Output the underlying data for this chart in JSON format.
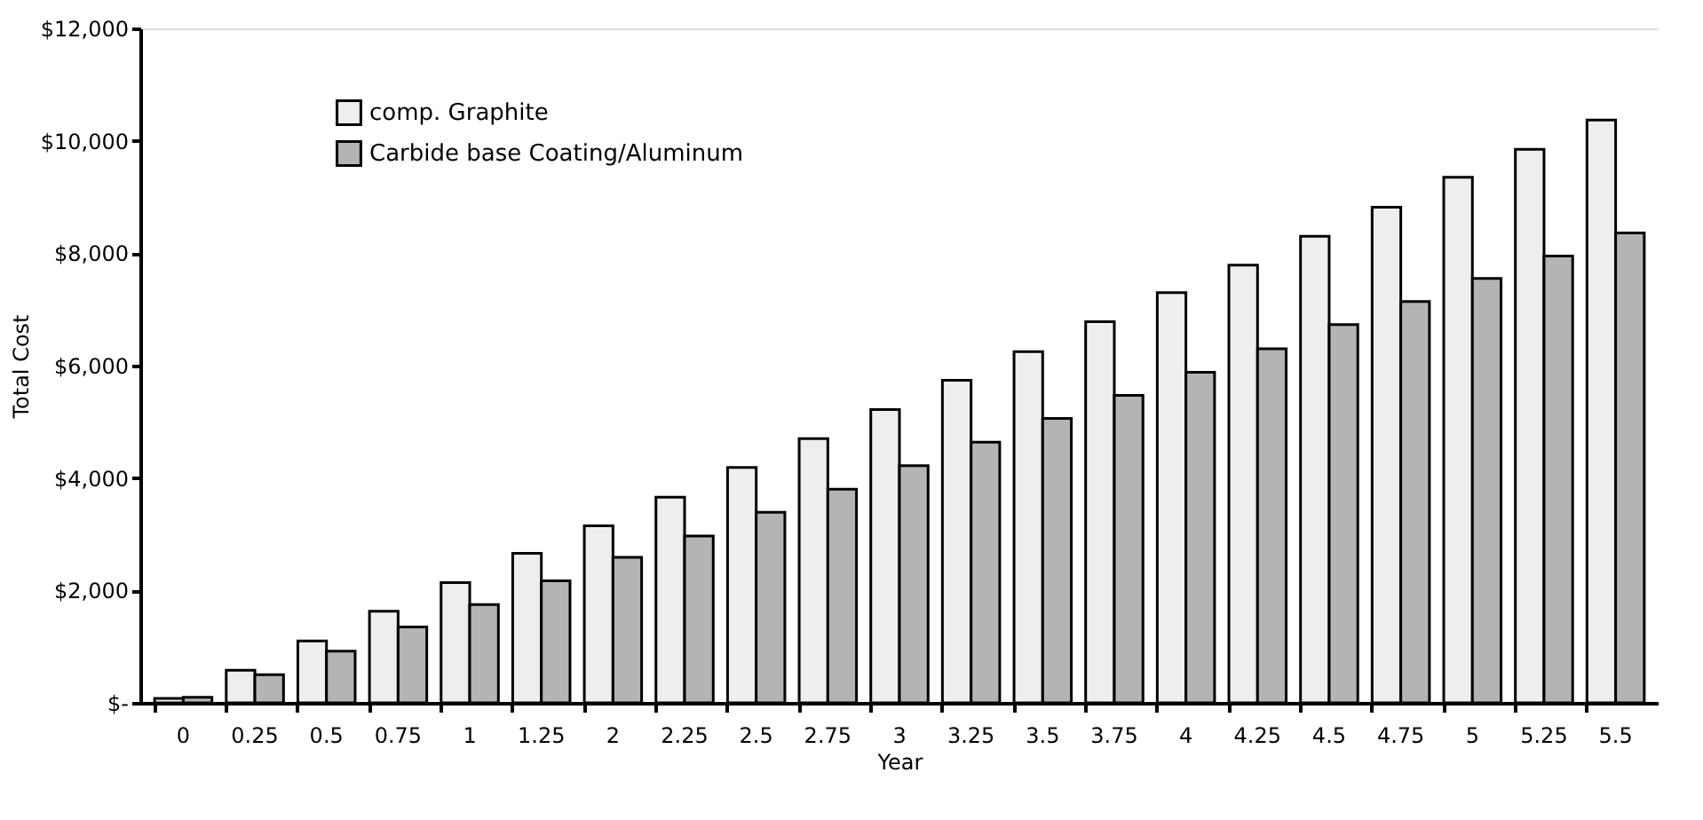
{
  "chart_data": {
    "type": "bar",
    "xlabel": "Year",
    "ylabel": "Total Cost",
    "categories": [
      "0",
      "0.25",
      "0.5",
      "0.75",
      "1",
      "1.25",
      "2",
      "2.25",
      "2.5",
      "2.75",
      "3",
      "3.25",
      "3.5",
      "3.75",
      "4",
      "4.25",
      "4.5",
      "4.75",
      "5",
      "5.25",
      "5.5"
    ],
    "series": [
      {
        "name": "comp. Graphite",
        "color": "#eeeeee",
        "values": [
          80,
          580,
          1100,
          1630,
          2140,
          2660,
          3150,
          3660,
          4190,
          4700,
          5220,
          5740,
          6250,
          6780,
          7300,
          7790,
          8300,
          8820,
          9350,
          9850,
          10370
        ]
      },
      {
        "name": "Carbide base Coating/Aluminum",
        "color": "#b4b4b4",
        "values": [
          100,
          500,
          920,
          1350,
          1750,
          2170,
          2590,
          2970,
          3390,
          3800,
          4220,
          4640,
          5060,
          5470,
          5880,
          6300,
          6730,
          7140,
          7550,
          7950,
          8360
        ]
      }
    ],
    "ylim": [
      0,
      12000
    ],
    "yticks": [
      {
        "value": 0,
        "label": "$-"
      },
      {
        "value": 2000,
        "label": "$2,000"
      },
      {
        "value": 4000,
        "label": "$4,000"
      },
      {
        "value": 6000,
        "label": "$6,000"
      },
      {
        "value": 8000,
        "label": "$8,000"
      },
      {
        "value": 10000,
        "label": "$10,000"
      },
      {
        "value": 12000,
        "label": "$12,000"
      }
    ],
    "grid": false,
    "legend": "top left"
  }
}
